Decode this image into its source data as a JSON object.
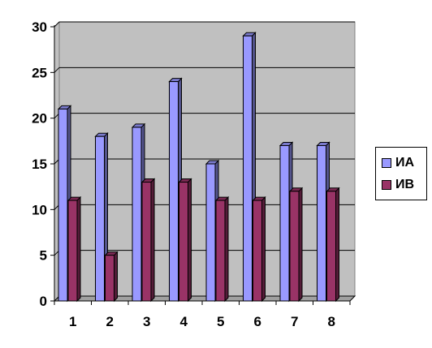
{
  "chart_data": {
    "type": "bar",
    "categories": [
      "1",
      "2",
      "3",
      "4",
      "5",
      "6",
      "7",
      "8"
    ],
    "series": [
      {
        "name": "ИА",
        "values": [
          21,
          18,
          19,
          24,
          15,
          29,
          17,
          17
        ],
        "color": "#9999ff"
      },
      {
        "name": "ИВ",
        "values": [
          11,
          5,
          13,
          13,
          11,
          11,
          12,
          12
        ],
        "color": "#993366"
      }
    ],
    "ylim": [
      0,
      30
    ],
    "yticks": [
      0,
      5,
      10,
      15,
      20,
      25,
      30
    ],
    "grid": true,
    "wall_color": "#c0c0c0",
    "legend_position": "right"
  }
}
